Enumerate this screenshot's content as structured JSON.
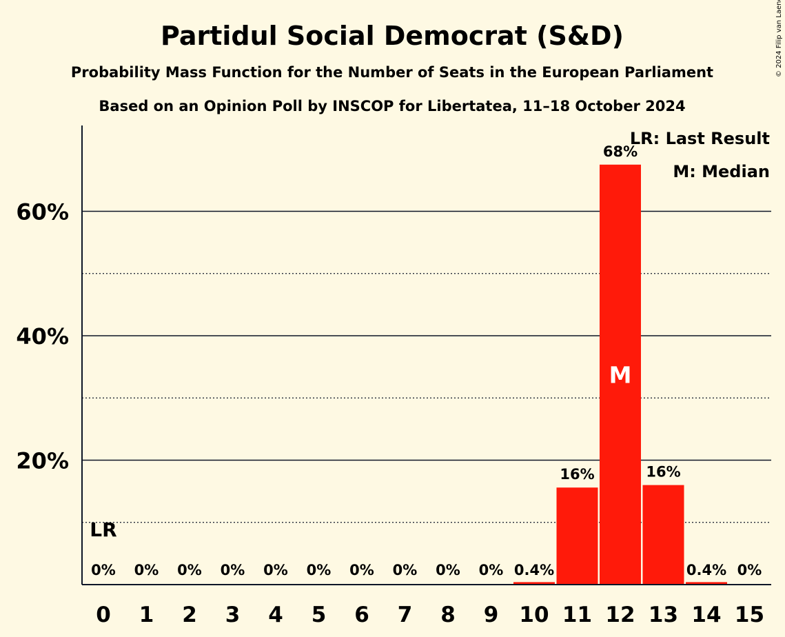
{
  "chart_data": {
    "type": "bar",
    "title": "Partidul Social Democrat (S&D)",
    "subtitle": "Probability Mass Function for the Number of Seats in the European Parliament",
    "subtitle2": "Based on an Opinion Poll by INSCOP for Libertatea, 11–18 October 2024",
    "copyright": "© 2024 Filip van Laenen",
    "categories": [
      "0",
      "1",
      "2",
      "3",
      "4",
      "5",
      "6",
      "7",
      "8",
      "9",
      "10",
      "11",
      "12",
      "13",
      "14",
      "15"
    ],
    "values": [
      0,
      0,
      0,
      0,
      0,
      0,
      0,
      0,
      0,
      0,
      0.4,
      15.6,
      67.5,
      16,
      0.4,
      0
    ],
    "data_labels": [
      "0%",
      "0%",
      "0%",
      "0%",
      "0%",
      "0%",
      "0%",
      "0%",
      "0%",
      "0%",
      "0.4%",
      "16%",
      "68%",
      "16%",
      "0.4%",
      "0%"
    ],
    "ylim": [
      0,
      72
    ],
    "y_major_ticks": [
      20,
      40,
      60
    ],
    "y_major_tick_labels": [
      "20%",
      "40%",
      "60%"
    ],
    "y_minor_gridlines": [
      10,
      30,
      50
    ],
    "bar_color": "#ff1a0a",
    "last_result": {
      "category": "0",
      "marker": "LR"
    },
    "median": {
      "category": "12",
      "marker": "M"
    },
    "legend": {
      "placement": "top-right",
      "items": [
        "LR: Last Result",
        "M: Median"
      ]
    }
  }
}
